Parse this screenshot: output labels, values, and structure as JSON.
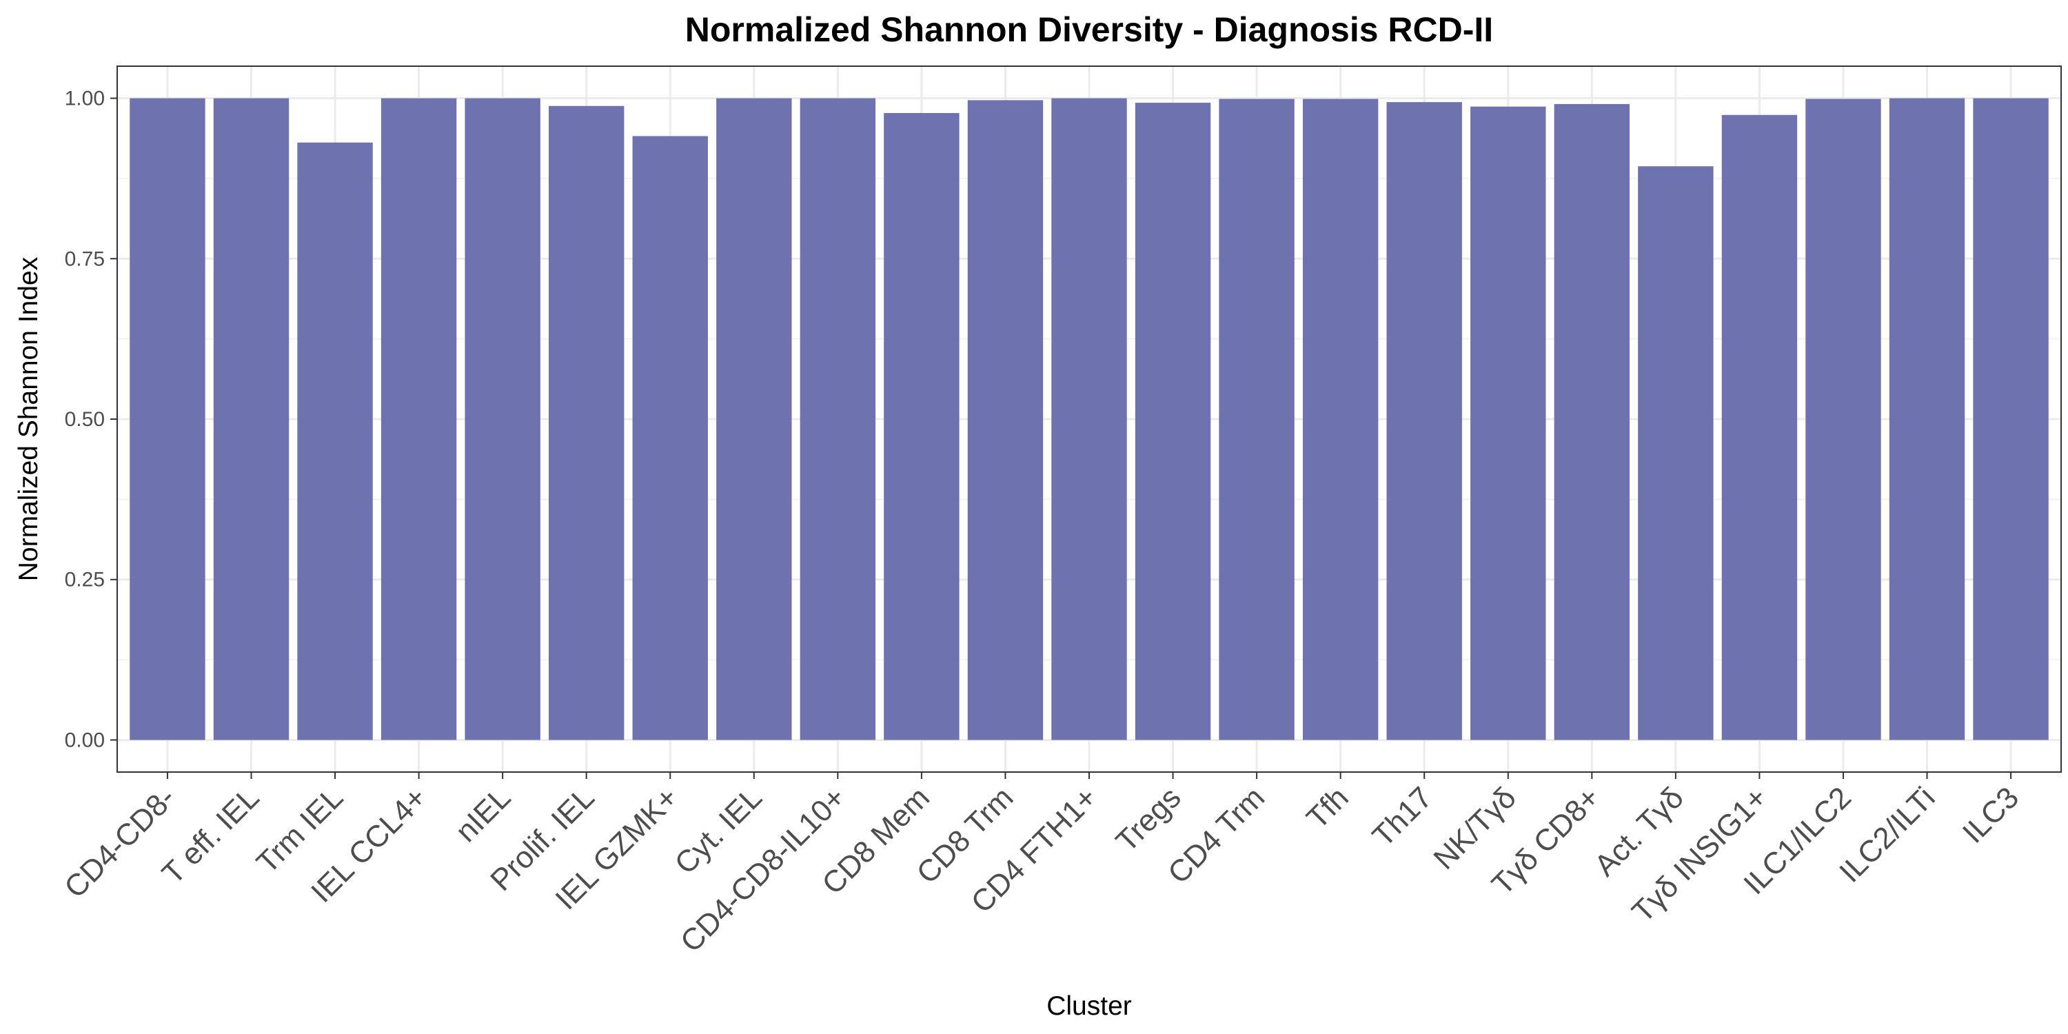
{
  "chart_data": {
    "type": "bar",
    "title": "Normalized Shannon Diversity - Diagnosis RCD-II",
    "xlabel": "Cluster",
    "ylabel": "Normalized Shannon Index",
    "ylim": [
      -0.05,
      1.05
    ],
    "yticks": [
      0,
      0.25,
      0.5,
      0.75,
      1.0
    ],
    "ytick_labels": [
      "0.00",
      "0.25",
      "0.50",
      "0.75",
      "1.00"
    ],
    "grid": true,
    "legend": "none",
    "bar_color": "#6e72ae",
    "categories": [
      "CD4-CD8-",
      "T eff. IEL",
      "Trm IEL",
      "IEL CCL4+",
      "nIEL",
      "Prolif. IEL",
      "IEL GZMK+",
      "Cyt. IEL",
      "CD4-CD8-IL10+",
      "CD8 Mem",
      "CD8 Trm",
      "CD4 FTH1+",
      "Tregs",
      "CD4 Trm",
      "Tfh",
      "Th17",
      "NK/Tγδ",
      "Tγδ CD8+",
      "Act. Tγδ",
      "Tγδ INSIG1+",
      "ILC1/ILC2",
      "ILC2/ILTi",
      "ILC3"
    ],
    "values": [
      1.0,
      1.0,
      0.931,
      1.0,
      1.0,
      0.988,
      0.941,
      1.0,
      1.0,
      0.977,
      0.997,
      1.0,
      0.993,
      0.999,
      0.999,
      0.994,
      0.987,
      0.991,
      0.894,
      0.974,
      0.999,
      1.0,
      1.0
    ]
  }
}
